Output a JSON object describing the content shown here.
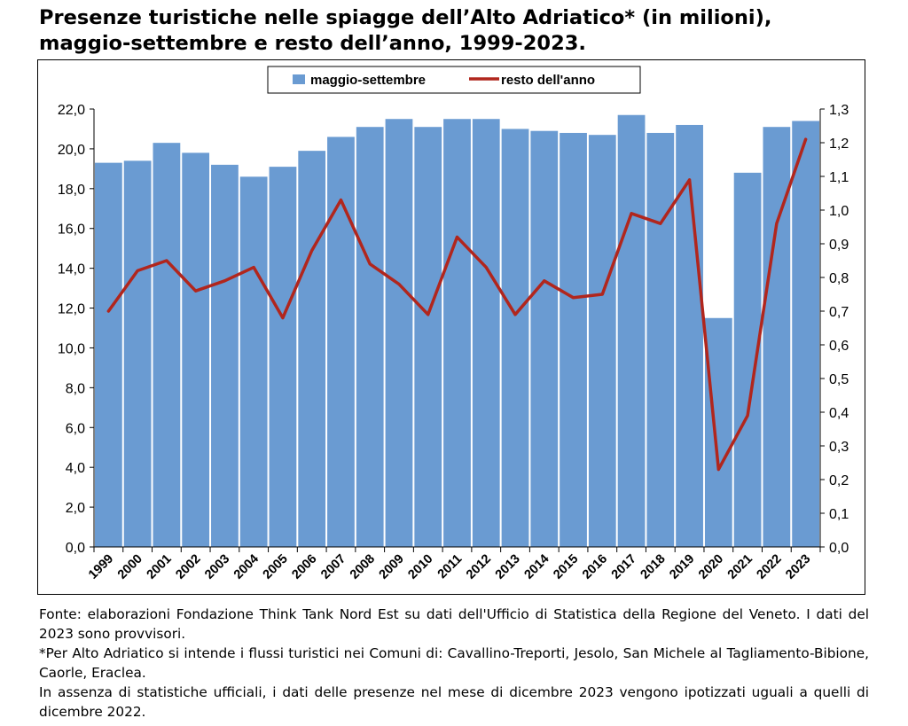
{
  "title": {
    "line1": "Presenze turistiche nelle spiagge dell’Alto Adriatico* (in milioni),",
    "line2": "maggio-settembre e resto dell’anno, 1999-2023."
  },
  "notes": [
    "Fonte: elaborazioni Fondazione Think Tank Nord Est su dati dell'Ufficio di Statistica della Regione del Veneto. I dati del 2023 sono provvisori.",
    "*Per Alto Adriatico si intende i flussi turistici nei Comuni di: Cavallino-Treporti, Jesolo, San Michele al Tagliamento-Bibione, Caorle, Eraclea.",
    "In assenza di statistiche ufficiali, i dati delle presenze nel mese di dicembre 2023 vengono ipotizzati uguali a quelli di dicembre 2022."
  ],
  "colors": {
    "bar": "#6a9bd2",
    "line": "#b1261d"
  },
  "chart_data": {
    "type": "bar",
    "categories": [
      "1999",
      "2000",
      "2001",
      "2002",
      "2003",
      "2004",
      "2005",
      "2006",
      "2007",
      "2008",
      "2009",
      "2010",
      "2011",
      "2012",
      "2013",
      "2014",
      "2015",
      "2016",
      "2017",
      "2018",
      "2019",
      "2020",
      "2021",
      "2022",
      "2023"
    ],
    "legend_position": "top-center",
    "grid": false,
    "series": [
      {
        "name": "maggio-settembre",
        "type": "bar",
        "axis": "left",
        "values": [
          19.3,
          19.4,
          20.3,
          19.8,
          19.2,
          18.6,
          19.1,
          19.9,
          20.6,
          21.1,
          21.5,
          21.1,
          21.5,
          21.5,
          21.0,
          20.9,
          20.8,
          20.7,
          21.7,
          20.8,
          21.2,
          11.5,
          18.8,
          21.1,
          21.4
        ]
      },
      {
        "name": "resto dell'anno",
        "type": "line",
        "axis": "right",
        "values": [
          0.7,
          0.82,
          0.85,
          0.76,
          0.79,
          0.83,
          0.68,
          0.88,
          1.03,
          0.84,
          0.78,
          0.69,
          0.92,
          0.83,
          0.69,
          0.79,
          0.74,
          0.75,
          0.99,
          0.96,
          1.09,
          0.23,
          0.39,
          0.96,
          1.21
        ]
      }
    ],
    "y_left": {
      "min": 0,
      "max": 22,
      "step": 2,
      "tick_labels": [
        "0,0",
        "2,0",
        "4,0",
        "6,0",
        "8,0",
        "10,0",
        "12,0",
        "14,0",
        "16,0",
        "18,0",
        "20,0",
        "22,0"
      ]
    },
    "y_right": {
      "min": 0,
      "max": 1.3,
      "step": 0.1,
      "tick_labels": [
        "0,0",
        "0,1",
        "0,2",
        "0,3",
        "0,4",
        "0,5",
        "0,6",
        "0,7",
        "0,8",
        "0,9",
        "1,0",
        "1,1",
        "1,2",
        "1,3"
      ]
    }
  }
}
